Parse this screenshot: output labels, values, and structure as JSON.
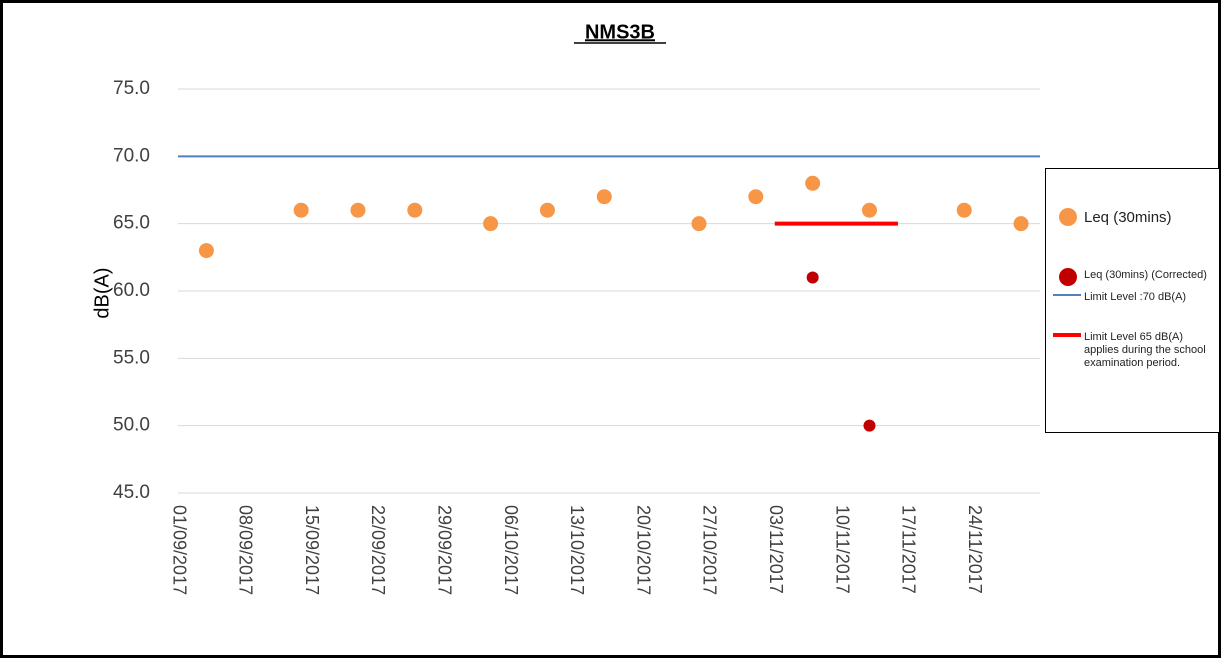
{
  "chart_data": {
    "type": "scatter",
    "title": "NMS3B",
    "ylabel": "dB(A)",
    "xlim": [
      "2017-09-01",
      "2017-12-01"
    ],
    "ylim": [
      45,
      75
    ],
    "yticks": [
      {
        "value": 45,
        "label": "45.0"
      },
      {
        "value": 50,
        "label": "50.0"
      },
      {
        "value": 55,
        "label": "55.0"
      },
      {
        "value": 60,
        "label": "60.0"
      },
      {
        "value": 65,
        "label": "65.0"
      },
      {
        "value": 70,
        "label": "70.0"
      },
      {
        "value": 75,
        "label": "75.0"
      }
    ],
    "xticks": [
      {
        "value": "2017-09-01",
        "label": "01/09/2017"
      },
      {
        "value": "2017-09-08",
        "label": "08/09/2017"
      },
      {
        "value": "2017-09-15",
        "label": "15/09/2017"
      },
      {
        "value": "2017-09-22",
        "label": "22/09/2017"
      },
      {
        "value": "2017-09-29",
        "label": "29/09/2017"
      },
      {
        "value": "2017-10-06",
        "label": "06/10/2017"
      },
      {
        "value": "2017-10-13",
        "label": "13/10/2017"
      },
      {
        "value": "2017-10-20",
        "label": "20/10/2017"
      },
      {
        "value": "2017-10-27",
        "label": "27/10/2017"
      },
      {
        "value": "2017-11-03",
        "label": "03/11/2017"
      },
      {
        "value": "2017-11-10",
        "label": "10/11/2017"
      },
      {
        "value": "2017-11-17",
        "label": "17/11/2017"
      },
      {
        "value": "2017-11-24",
        "label": "24/11/2017"
      }
    ],
    "grid": true,
    "legend": "right",
    "series": [
      {
        "name": "Leq (30mins)",
        "color": "#f79646",
        "style": "marker",
        "x": [
          "2017-09-04",
          "2017-09-14",
          "2017-09-20",
          "2017-09-26",
          "2017-10-04",
          "2017-10-10",
          "2017-10-16",
          "2017-10-26",
          "2017-11-01",
          "2017-11-07",
          "2017-11-13",
          "2017-11-23",
          "2017-11-29"
        ],
        "values": [
          63,
          66,
          66,
          66,
          65,
          66,
          67,
          65,
          67,
          68,
          66,
          66,
          65
        ]
      },
      {
        "name": "Leq (30mins) (Corrected)",
        "color": "#c00000",
        "style": "marker",
        "x": [
          "2017-11-07",
          "2017-11-13"
        ],
        "values": [
          61,
          50
        ]
      },
      {
        "name": "Limit Level :70 dB(A)",
        "color": "#4f81bd",
        "style": "line",
        "x": [
          "2017-09-01",
          "2017-12-01"
        ],
        "values": [
          70,
          70
        ]
      },
      {
        "name": "Limit Level 65 dB(A) applies during the school examination period.",
        "color": "#ff0000",
        "style": "line",
        "x": [
          "2017-11-03",
          "2017-11-16"
        ],
        "values": [
          65,
          65
        ]
      }
    ]
  }
}
